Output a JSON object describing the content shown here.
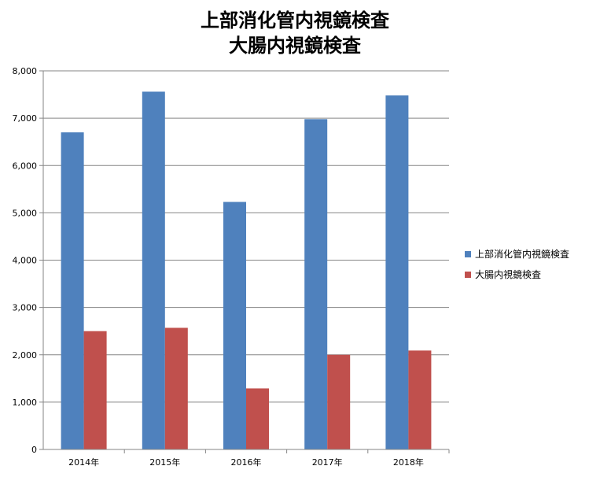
{
  "chart_data": {
    "type": "bar",
    "title_lines": [
      "上部消化管内視鏡検査",
      "大腸内視鏡検査"
    ],
    "categories": [
      "2014年",
      "2015年",
      "2016年",
      "2017年",
      "2018年"
    ],
    "series": [
      {
        "name": "上部消化管内視鏡検査",
        "color": "#4f81bd",
        "values": [
          6700,
          7560,
          5230,
          6980,
          7480
        ]
      },
      {
        "name": "大腸内視鏡検査",
        "color": "#c0504d",
        "values": [
          2500,
          2570,
          1290,
          2000,
          2090
        ]
      }
    ],
    "ylim": [
      0,
      8000
    ],
    "yticks": [
      "0",
      "1,000",
      "2,000",
      "3,000",
      "4,000",
      "5,000",
      "6,000",
      "7,000",
      "8,000"
    ],
    "grid": true,
    "legend_position": "right"
  }
}
